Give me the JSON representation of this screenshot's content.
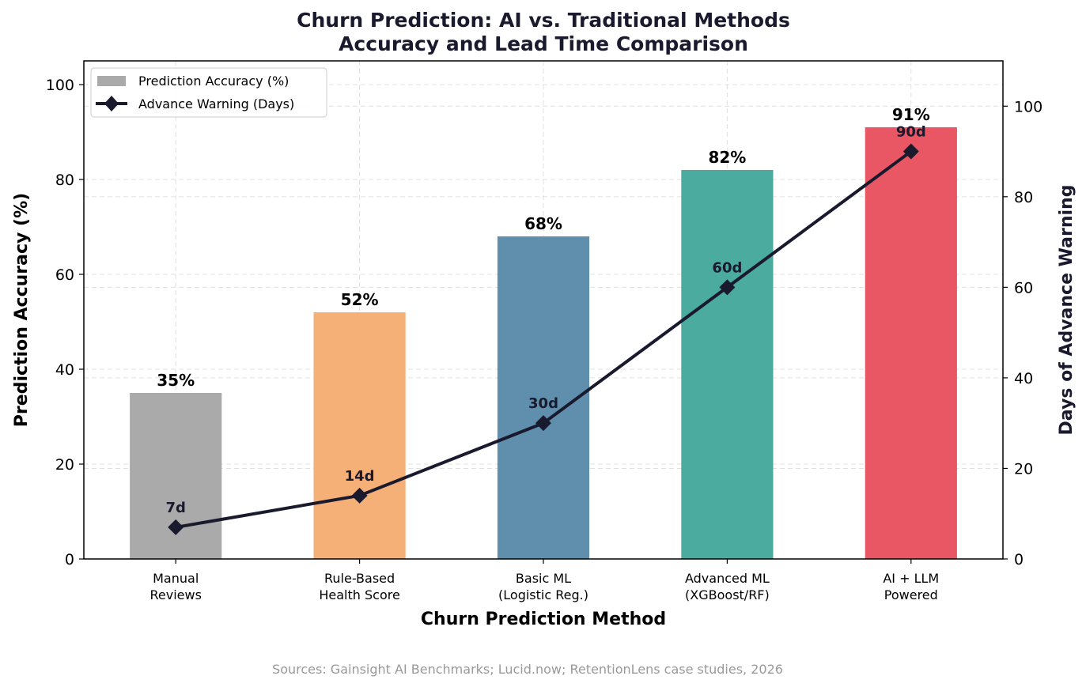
{
  "chart_data": {
    "type": "bar",
    "title": "Churn Prediction: AI vs. Traditional Methods",
    "subtitle": "Accuracy and Lead Time Comparison",
    "xlabel": "Churn Prediction Method",
    "ylabel": "Prediction Accuracy (%)",
    "y2label": "Days of Advance Warning",
    "ylim": [
      0,
      105
    ],
    "y2lim": [
      0,
      110
    ],
    "yticks": [
      0,
      20,
      40,
      60,
      80,
      100
    ],
    "y2ticks": [
      0,
      20,
      40,
      60,
      80,
      100
    ],
    "categories": [
      [
        "Manual",
        "Reviews"
      ],
      [
        "Rule-Based",
        "Health Score"
      ],
      [
        "Basic ML",
        "(Logistic Reg.)"
      ],
      [
        "Advanced ML",
        "(XGBoost/RF)"
      ],
      [
        "AI + LLM",
        "Powered"
      ]
    ],
    "series": [
      {
        "name": "Prediction Accuracy (%)",
        "type": "bar",
        "axis": "left",
        "values": [
          35,
          52,
          68,
          82,
          91
        ],
        "labels": [
          "35%",
          "52%",
          "68%",
          "82%",
          "91%"
        ],
        "colors": [
          "#aaaaaa",
          "#f4b077",
          "#5f8fad",
          "#4aab9e",
          "#e95764"
        ]
      },
      {
        "name": "Advance Warning (Days)",
        "type": "line",
        "axis": "right",
        "marker": "diamond",
        "color": "#1a1a2e",
        "values": [
          7,
          14,
          30,
          60,
          90
        ],
        "labels": [
          "7d",
          "14d",
          "30d",
          "60d",
          "90d"
        ]
      }
    ],
    "grid": true,
    "legend_position": "top-left",
    "legend_swatch_color": "#aaaaaa"
  },
  "footer": {
    "source": "Sources: Gainsight AI Benchmarks; Lucid.now; RetentionLens case studies, 2026"
  }
}
